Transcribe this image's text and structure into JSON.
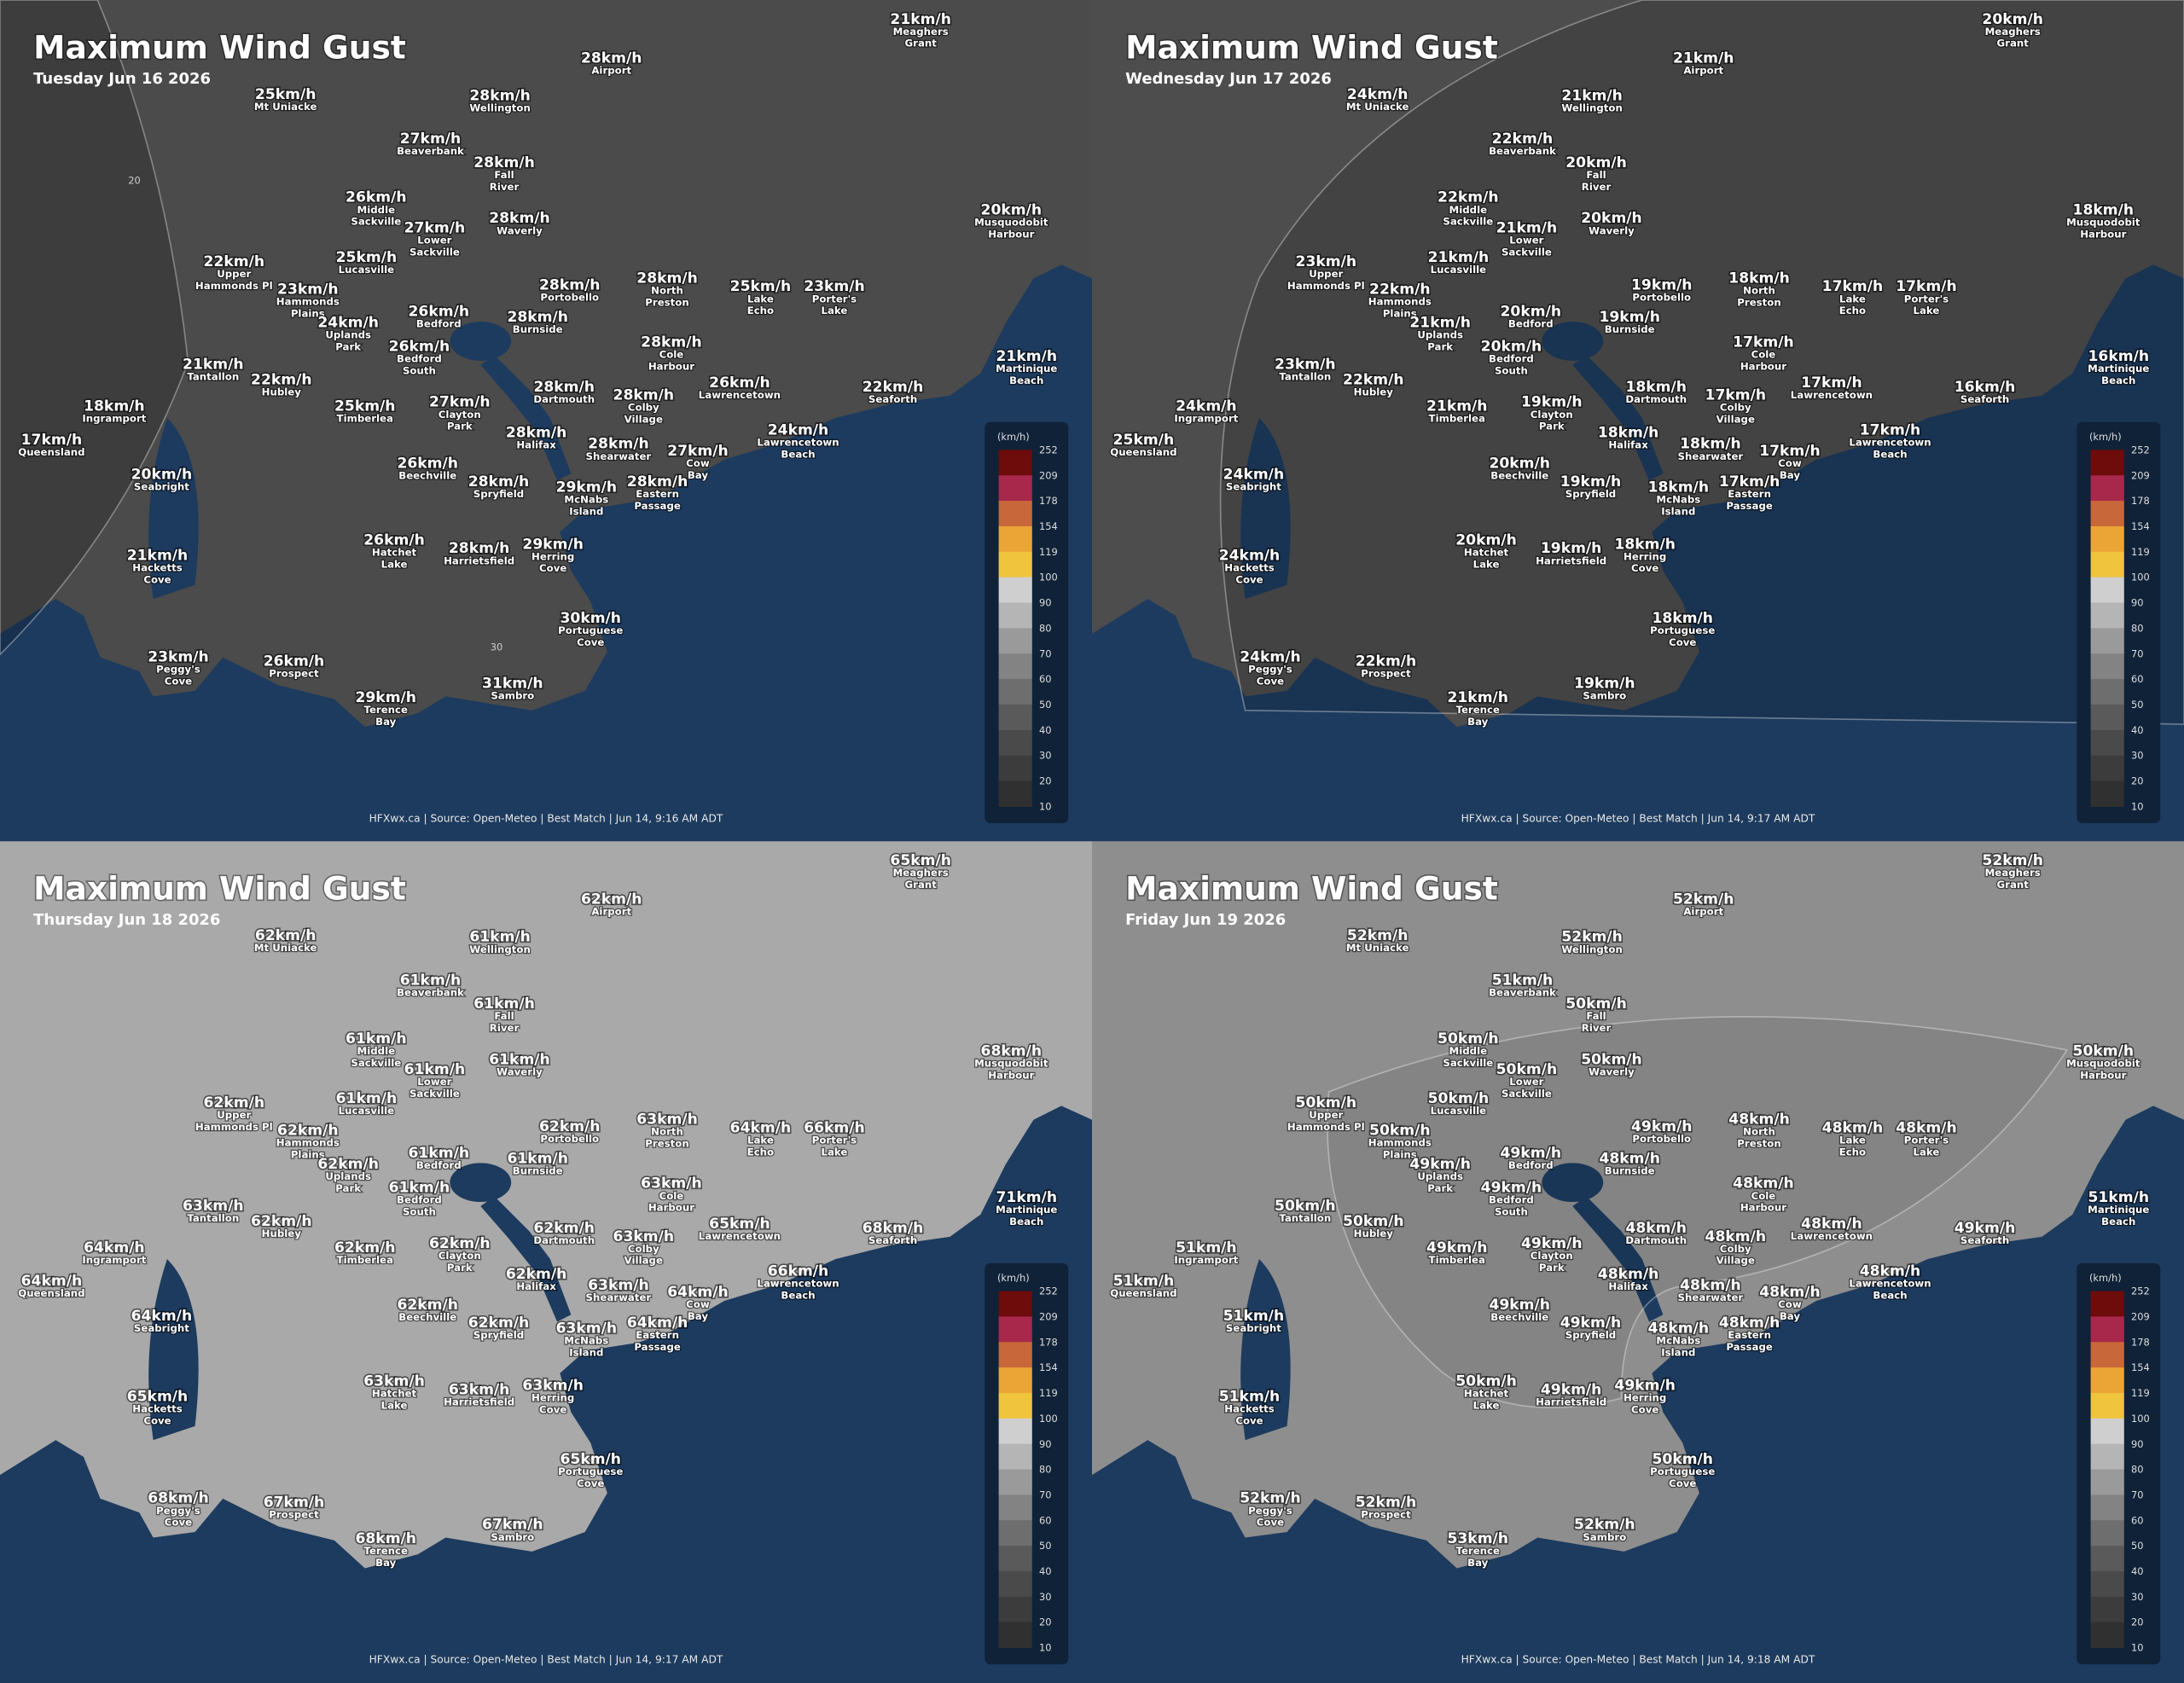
{
  "places": [
    [
      "Meaghers",
      "Grant"
    ],
    [
      "Airport"
    ],
    [
      "Mt Uniacke"
    ],
    [
      "Wellington"
    ],
    [
      "Beaverbank"
    ],
    [
      "Fall",
      "River"
    ],
    [
      "Middle",
      "Sackville"
    ],
    [
      "Lower",
      "Sackville"
    ],
    [
      "Waverly"
    ],
    [
      "Musquodobit",
      "Harbour"
    ],
    [
      "Upper",
      "Hammonds Pl"
    ],
    [
      "Lucasville"
    ],
    [
      "Hammonds",
      "Plains"
    ],
    [
      "Portobello"
    ],
    [
      "North",
      "Preston"
    ],
    [
      "Lake",
      "Echo"
    ],
    [
      "Porter's",
      "Lake"
    ],
    [
      "Uplands",
      "Park"
    ],
    [
      "Bedford"
    ],
    [
      "Burnside"
    ],
    [
      "Cole",
      "Harbour"
    ],
    [
      "Bedford",
      "South"
    ],
    [
      "Tantallon"
    ],
    [
      "Hubley"
    ],
    [
      "Martinique",
      "Beach"
    ],
    [
      "Dartmouth"
    ],
    [
      "Lawrencetown"
    ],
    [
      "Seaforth"
    ],
    [
      "Ingramport"
    ],
    [
      "Timberlea"
    ],
    [
      "Clayton",
      "Park"
    ],
    [
      "Colby",
      "Village"
    ],
    [
      "Queensland"
    ],
    [
      "Halifax"
    ],
    [
      "Shearwater"
    ],
    [
      "Lawrencetown",
      "Beach"
    ],
    [
      "Cow",
      "Bay"
    ],
    [
      "Beechville"
    ],
    [
      "Seabright"
    ],
    [
      "Spryfield"
    ],
    [
      "McNabs",
      "Island"
    ],
    [
      "Eastern",
      "Passage"
    ],
    [
      "Hatchet",
      "Lake"
    ],
    [
      "Harrietsfield"
    ],
    [
      "Herring",
      "Cove"
    ],
    [
      "Hacketts",
      "Cove"
    ],
    [
      "Portuguese",
      "Cove"
    ],
    [
      "Peggy's",
      "Cove"
    ],
    [
      "Prospect"
    ],
    [
      "Terence",
      "Bay"
    ],
    [
      "Sambro"
    ]
  ],
  "legend": {
    "unit": "(km/h)",
    "ticks": [
      252,
      209,
      178,
      154,
      119,
      100,
      90,
      80,
      70,
      60,
      50,
      40,
      30,
      20,
      10
    ],
    "colors": [
      "#6e0b0b",
      "#a8284c",
      "#c8683a",
      "#eba436",
      "#f0c43c",
      "#cfcfcf",
      "#b5b5b5",
      "#9a9a9a",
      "#838383",
      "#6e6e6e",
      "#5a5a5a",
      "#4a4a4a",
      "#3c3c3c",
      "#303030"
    ]
  },
  "panels": [
    {
      "title": "Maximum Wind Gust",
      "date": "Tuesday Jun 16 2026",
      "footer": "HFXwx.ca | Source: Open-Meteo | Best Match | Jun 14, 9:16 AM ADT",
      "contour_labels": [
        "20",
        "30"
      ],
      "gusts": [
        "21km/h",
        "28km/h",
        "25km/h",
        "28km/h",
        "27km/h",
        "28km/h",
        "26km/h",
        "27km/h",
        "28km/h",
        "20km/h",
        "22km/h",
        "25km/h",
        "23km/h",
        "28km/h",
        "28km/h",
        "25km/h",
        "23km/h",
        "24km/h",
        "26km/h",
        "28km/h",
        "28km/h",
        "26km/h",
        "21km/h",
        "22km/h",
        "21km/h",
        "28km/h",
        "26km/h",
        "22km/h",
        "18km/h",
        "25km/h",
        "27km/h",
        "28km/h",
        "17km/h",
        "28km/h",
        "28km/h",
        "24km/h",
        "27km/h",
        "26km/h",
        "20km/h",
        "28km/h",
        "29km/h",
        "28km/h",
        "26km/h",
        "28km/h",
        "29km/h",
        "21km/h",
        "30km/h",
        "23km/h",
        "26km/h",
        "29km/h",
        "31km/h"
      ]
    },
    {
      "title": "Maximum Wind Gust",
      "date": "Wednesday Jun 17 2026",
      "footer": "HFXwx.ca | Source: Open-Meteo | Best Match | Jun 14, 9:17 AM ADT",
      "gusts": [
        "20km/h",
        "21km/h",
        "24km/h",
        "21km/h",
        "22km/h",
        "20km/h",
        "22km/h",
        "21km/h",
        "20km/h",
        "18km/h",
        "23km/h",
        "21km/h",
        "22km/h",
        "19km/h",
        "18km/h",
        "17km/h",
        "17km/h",
        "21km/h",
        "20km/h",
        "19km/h",
        "17km/h",
        "20km/h",
        "23km/h",
        "22km/h",
        "16km/h",
        "18km/h",
        "17km/h",
        "16km/h",
        "24km/h",
        "21km/h",
        "19km/h",
        "17km/h",
        "25km/h",
        "18km/h",
        "18km/h",
        "17km/h",
        "17km/h",
        "20km/h",
        "24km/h",
        "19km/h",
        "18km/h",
        "17km/h",
        "20km/h",
        "19km/h",
        "18km/h",
        "24km/h",
        "18km/h",
        "24km/h",
        "22km/h",
        "21km/h",
        "19km/h"
      ]
    },
    {
      "title": "Maximum Wind Gust",
      "date": "Thursday Jun 18 2026",
      "footer": "HFXwx.ca | Source: Open-Meteo | Best Match | Jun 14, 9:17 AM ADT",
      "gusts": [
        "65km/h",
        "62km/h",
        "62km/h",
        "61km/h",
        "61km/h",
        "61km/h",
        "61km/h",
        "61km/h",
        "61km/h",
        "68km/h",
        "62km/h",
        "61km/h",
        "62km/h",
        "62km/h",
        "63km/h",
        "64km/h",
        "66km/h",
        "62km/h",
        "61km/h",
        "61km/h",
        "63km/h",
        "61km/h",
        "63km/h",
        "62km/h",
        "71km/h",
        "62km/h",
        "65km/h",
        "68km/h",
        "64km/h",
        "62km/h",
        "62km/h",
        "63km/h",
        "64km/h",
        "62km/h",
        "63km/h",
        "66km/h",
        "64km/h",
        "62km/h",
        "64km/h",
        "62km/h",
        "63km/h",
        "64km/h",
        "63km/h",
        "63km/h",
        "63km/h",
        "65km/h",
        "65km/h",
        "68km/h",
        "67km/h",
        "68km/h",
        "67km/h"
      ]
    },
    {
      "title": "Maximum Wind Gust",
      "date": "Friday Jun 19 2026",
      "footer": "HFXwx.ca | Source: Open-Meteo | Best Match | Jun 14, 9:18 AM ADT",
      "gusts": [
        "52km/h",
        "52km/h",
        "52km/h",
        "52km/h",
        "51km/h",
        "50km/h",
        "50km/h",
        "50km/h",
        "50km/h",
        "50km/h",
        "50km/h",
        "50km/h",
        "50km/h",
        "49km/h",
        "48km/h",
        "48km/h",
        "48km/h",
        "49km/h",
        "49km/h",
        "48km/h",
        "48km/h",
        "49km/h",
        "50km/h",
        "50km/h",
        "51km/h",
        "48km/h",
        "48km/h",
        "49km/h",
        "51km/h",
        "49km/h",
        "49km/h",
        "48km/h",
        "51km/h",
        "48km/h",
        "48km/h",
        "48km/h",
        "48km/h",
        "49km/h",
        "51km/h",
        "49km/h",
        "48km/h",
        "48km/h",
        "50km/h",
        "49km/h",
        "49km/h",
        "51km/h",
        "50km/h",
        "52km/h",
        "52km/h",
        "53km/h",
        "52km/h"
      ]
    }
  ]
}
